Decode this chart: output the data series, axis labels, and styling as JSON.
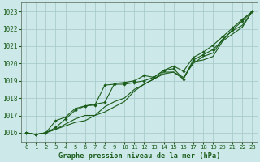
{
  "xlabel": "Graphe pression niveau de la mer (hPa)",
  "background_color": "#cce8e8",
  "grid_color": "#aacccc",
  "line_color": "#1a5c1a",
  "ylim": [
    1015.5,
    1023.5
  ],
  "xlim": [
    -0.5,
    23.5
  ],
  "yticks": [
    1016,
    1017,
    1018,
    1019,
    1020,
    1021,
    1022,
    1023
  ],
  "xticks": [
    0,
    1,
    2,
    3,
    4,
    5,
    6,
    7,
    8,
    9,
    10,
    11,
    12,
    13,
    14,
    15,
    16,
    17,
    18,
    19,
    20,
    21,
    22,
    23
  ],
  "series_plain": [
    [
      1016.0,
      1015.9,
      1016.0,
      1016.2,
      1016.4,
      1016.6,
      1016.7,
      1017.0,
      1017.5,
      1017.8,
      1018.0,
      1018.5,
      1018.8,
      1019.1,
      1019.5,
      1019.5,
      1019.1,
      1020.1,
      1020.2,
      1020.4,
      1021.3,
      1021.7,
      1022.1,
      1023.0
    ],
    [
      1016.0,
      1015.9,
      1016.0,
      1016.2,
      1016.5,
      1016.8,
      1017.0,
      1017.0,
      1017.2,
      1017.5,
      1017.8,
      1018.4,
      1018.8,
      1019.1,
      1019.4,
      1019.5,
      1019.2,
      1020.0,
      1020.4,
      1020.6,
      1021.4,
      1021.9,
      1022.2,
      1023.0
    ]
  ],
  "series_marker": [
    [
      1016.0,
      1015.9,
      1016.0,
      1016.3,
      1016.8,
      1017.3,
      1017.55,
      1017.6,
      1018.75,
      1018.8,
      1018.8,
      1018.9,
      1019.0,
      1019.2,
      1019.6,
      1019.7,
      1019.1,
      1020.2,
      1020.5,
      1020.8,
      1021.35,
      1021.95,
      1022.45,
      1023.0
    ],
    [
      1016.0,
      1015.9,
      1016.0,
      1016.7,
      1016.9,
      1017.4,
      1017.55,
      1017.65,
      1017.75,
      1018.85,
      1018.9,
      1019.0,
      1019.3,
      1019.2,
      1019.6,
      1019.85,
      1019.55,
      1020.35,
      1020.65,
      1021.05,
      1021.55,
      1022.05,
      1022.55,
      1023.0
    ]
  ]
}
